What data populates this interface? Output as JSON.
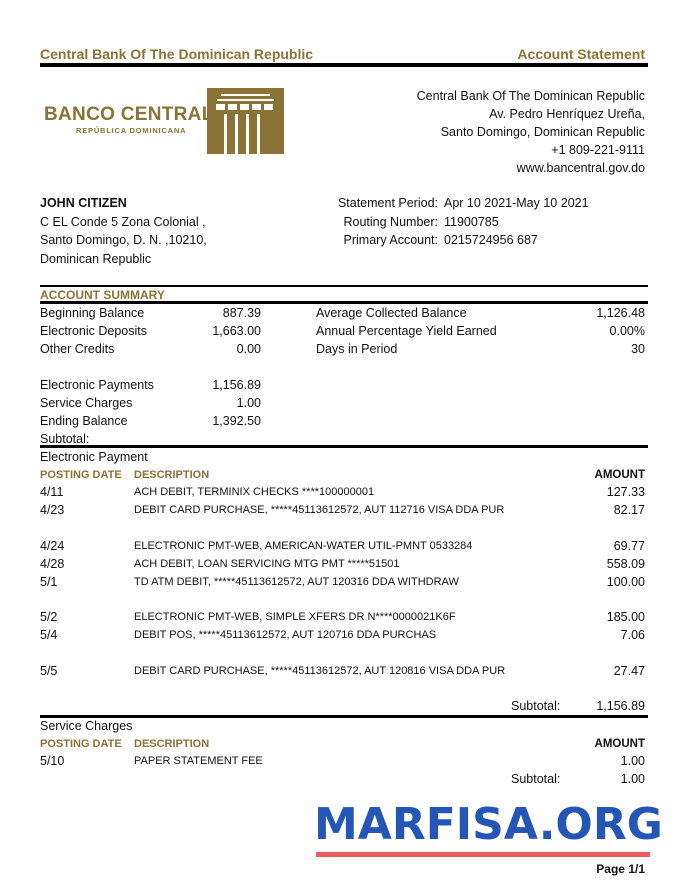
{
  "header": {
    "bank_name": "Central Bank Of The Dominican Republic",
    "doc_title": "Account Statement"
  },
  "logo": {
    "line1": "BANCO CENTRAL",
    "line2": "REPÚBLICA DOMINICANA",
    "color": "#8b7335"
  },
  "bank_address": [
    "Central Bank Of The Dominican Republic",
    "Av. Pedro Henríquez Ureña,",
    "Santo Domingo, Dominican Republic",
    "+1 809-221-9111",
    "www.bancentral.gov.do"
  ],
  "customer": {
    "name": "JOHN CITIZEN",
    "address": [
      "C EL Conde 5 Zona Colonial ,",
      "Santo Domingo, D. N. ,10210,",
      "Dominican Republic"
    ]
  },
  "statement": {
    "period_label": "Statement Period:",
    "period": "Apr 10 2021-May 10 2021",
    "routing_label": "Routing Number:",
    "routing": "11900785",
    "account_label": "Primary Account:",
    "account": "0215724956 687"
  },
  "summary": {
    "title": "ACCOUNT SUMMARY",
    "left": [
      {
        "label": "Beginning Balance",
        "value": "887.39"
      },
      {
        "label": "Electronic Deposits",
        "value": "1,663.00"
      },
      {
        "label": "Other Credits",
        "value": "0.00"
      }
    ],
    "left2": [
      {
        "label": "Electronic Payments",
        "value": "1,156.89"
      },
      {
        "label": "Service Charges",
        "value": "1.00"
      },
      {
        "label": "Ending Balance",
        "value": "1,392.50"
      },
      {
        "label": "Subtotal:",
        "value": ""
      }
    ],
    "right": [
      {
        "label": "Average Collected Balance",
        "value": "1,126.48"
      },
      {
        "label": "Annual Percentage Yield Earned",
        "value": "0.00%"
      },
      {
        "label": "Days in Period",
        "value": "30"
      }
    ]
  },
  "columns": {
    "date": "POSTING DATE",
    "description": "DESCRIPTION",
    "amount": "AMOUNT"
  },
  "electronic_payment": {
    "title": "Electronic Payment",
    "groups": [
      [
        {
          "date": "4/11",
          "description": "ACH DEBIT, TERMINIX CHECKS ****100000001",
          "amount": "127.33"
        },
        {
          "date": "4/23",
          "description": "DEBIT CARD PURCHASE, *****45113612572, AUT 112716 VISA DDA PUR",
          "amount": "82.17"
        }
      ],
      [
        {
          "date": "4/24",
          "description": "ELECTRONIC PMT-WEB, AMERICAN-WATER UTIL-PMNT 0533284",
          "amount": "69.77"
        },
        {
          "date": "4/28",
          "description": "ACH DEBIT, LOAN SERVICING MTG PMT *****51501",
          "amount": "558.09"
        },
        {
          "date": "5/1",
          "description": "TD ATM DEBIT, *****45113612572, AUT 120316 DDA WITHDRAW",
          "amount": "100.00"
        }
      ],
      [
        {
          "date": "5/2",
          "description": "ELECTRONIC PMT-WEB, SIMPLE XFERS DR N****0000021K6F",
          "amount": "185.00"
        },
        {
          "date": "5/4",
          "description": "DEBIT POS, *****45113612572, AUT 120716 DDA PURCHAS",
          "amount": "7.06"
        }
      ],
      [
        {
          "date": "5/5",
          "description": "DEBIT CARD PURCHASE, *****45113612572, AUT 120816 VISA DDA PUR",
          "amount": "27.47"
        }
      ]
    ],
    "subtotal_label": "Subtotal:",
    "subtotal": "1,156.89"
  },
  "service_charges": {
    "title": "Service Charges",
    "rows": [
      {
        "date": "5/10",
        "description": "PAPER STATEMENT FEE",
        "amount": "1.00"
      }
    ],
    "subtotal_label": "Subtotal:",
    "subtotal": "1.00"
  },
  "footer": {
    "page": "Page 1/1"
  },
  "watermark": {
    "text": "MARFISA.ORG",
    "color": "#2356b5",
    "underline_color": "#ef5a5f"
  }
}
